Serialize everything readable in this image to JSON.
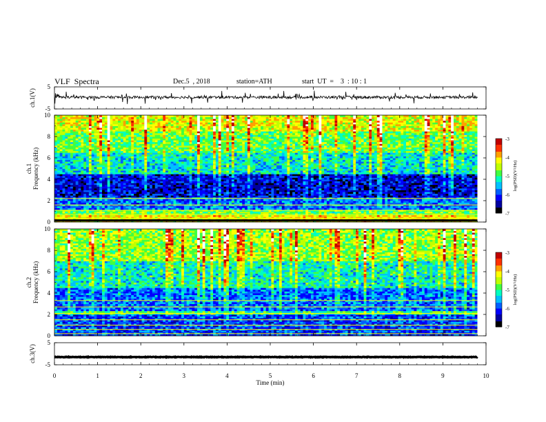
{
  "header": {
    "title": "VLF  Spectra",
    "date": "Dec.5  , 2018",
    "station": "station=ATH",
    "start": "start  UT  =    3  : 10 : 1"
  },
  "chart_data": [
    {
      "type": "line",
      "panel": "ch1-waveform",
      "ylabel": "ch.1(V)",
      "ylim": [
        -5,
        5
      ],
      "ytick_labels": [
        "5",
        "-5"
      ],
      "xlim": [
        0,
        10
      ],
      "baseline_v": 0.3,
      "noise": "dense small fluctuations with frequent spikes reaching about ±2 V"
    },
    {
      "type": "heatmap",
      "panel": "ch1-spectrogram",
      "ylabel": "ch.1\nFrequency  (kHz)",
      "ylim": [
        0,
        10
      ],
      "ytick_labels": [
        "0",
        "2",
        "4",
        "6",
        "8",
        "10"
      ],
      "xlim": [
        0,
        9.8
      ],
      "colorbar": {
        "label": "log(PSD)(V²/Hz)",
        "range": [
          -7,
          -3
        ],
        "tick_labels": [
          "-3",
          "-4",
          "-5",
          "-6",
          "-7"
        ]
      },
      "bands": [
        {
          "from_khz": 0,
          "to_khz": 0.6,
          "level": -4.2
        },
        {
          "from_khz": 0.6,
          "to_khz": 1.2,
          "level": -4.8
        },
        {
          "from_khz": 1.2,
          "to_khz": 2.4,
          "level": -5.8
        },
        {
          "from_khz": 2.4,
          "to_khz": 4.5,
          "level": -6.3
        },
        {
          "from_khz": 4.5,
          "to_khz": 6.5,
          "level": -5.3
        },
        {
          "from_khz": 6.5,
          "to_khz": 8.5,
          "level": -4.8
        },
        {
          "from_khz": 8.5,
          "to_khz": 10,
          "level": -4.3
        }
      ]
    },
    {
      "type": "heatmap",
      "panel": "ch2-spectrogram",
      "ylabel": "ch.2\nFrequency  (kHz)",
      "ylim": [
        0,
        10
      ],
      "ytick_labels": [
        "0",
        "2",
        "4",
        "6",
        "8",
        "10"
      ],
      "xlim": [
        0,
        9.8
      ],
      "colorbar": {
        "label": "log(PSD)(V²/Hz)",
        "range": [
          -7,
          -3
        ],
        "tick_labels": [
          "-3",
          "-4",
          "-5",
          "-6",
          "-7"
        ]
      },
      "bands": [
        {
          "from_khz": 0,
          "to_khz": 2.0,
          "level": -6.0
        },
        {
          "from_khz": 2.0,
          "to_khz": 2.4,
          "level": -5.0
        },
        {
          "from_khz": 2.4,
          "to_khz": 4.5,
          "level": -5.8
        },
        {
          "from_khz": 4.5,
          "to_khz": 7.0,
          "level": -5.2
        },
        {
          "from_khz": 7.0,
          "to_khz": 10,
          "level": -4.6
        }
      ]
    },
    {
      "type": "line",
      "panel": "ch3-waveform",
      "ylabel": "ch.3(V)",
      "ylim": [
        -5,
        5
      ],
      "ytick_labels": [
        "5",
        "-5"
      ],
      "xlim": [
        0,
        10
      ],
      "baseline_v": -1.5,
      "xlabel": "Time  (min)",
      "xtick_labels": [
        "0",
        "1",
        "2",
        "3",
        "4",
        "5",
        "6",
        "7",
        "8",
        "9",
        "10"
      ]
    }
  ],
  "colors": {
    "colormap": [
      "#000000",
      "#0000a0",
      "#0000ff",
      "#0060ff",
      "#00c0ff",
      "#00ffc0",
      "#40ff40",
      "#c0ff00",
      "#ffff00",
      "#ffa000",
      "#ff3000",
      "#c00000",
      "#ffffff"
    ],
    "axis": "#000000",
    "trace": "#000000"
  }
}
